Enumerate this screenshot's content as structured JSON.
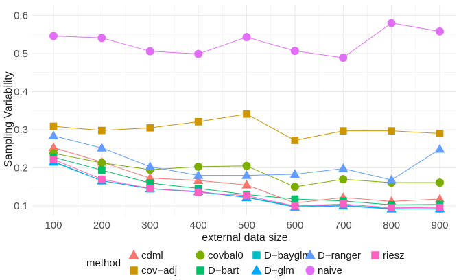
{
  "chart_data": {
    "type": "line",
    "title": "",
    "xlabel": "external data size",
    "ylabel": "Sampling Variability",
    "x": [
      100,
      200,
      300,
      400,
      500,
      600,
      700,
      800,
      900
    ],
    "xlim": [
      100,
      900
    ],
    "ylim": [
      0.08,
      0.62
    ],
    "yticks": [
      0.1,
      0.2,
      0.3,
      0.4,
      0.5,
      0.6
    ],
    "ytick_labels": [
      "0.1",
      "0.2",
      "0.3",
      "0.4",
      "0.5",
      "0.6"
    ],
    "xtick_labels": [
      "100",
      "200",
      "300",
      "400",
      "500",
      "600",
      "700",
      "800",
      "900"
    ],
    "grid": true,
    "legend_title": "method",
    "legend_position": "bottom",
    "series": [
      {
        "name": "cdml",
        "color": "#F8766D",
        "marker": "triangle",
        "values": [
          0.253,
          0.215,
          0.173,
          0.167,
          0.155,
          0.108,
          0.122,
          0.112,
          0.118
        ]
      },
      {
        "name": "cov−adj",
        "color": "#CD9600",
        "marker": "square",
        "values": [
          0.309,
          0.298,
          0.305,
          0.321,
          0.341,
          0.272,
          0.297,
          0.297,
          0.29
        ]
      },
      {
        "name": "covbal0",
        "color": "#7CAE00",
        "marker": "circle",
        "values": [
          0.238,
          0.213,
          0.195,
          0.203,
          0.205,
          0.15,
          0.17,
          0.161,
          0.161
        ]
      },
      {
        "name": "D−bart",
        "color": "#00BE67",
        "marker": "square",
        "values": [
          0.228,
          0.194,
          0.16,
          0.146,
          0.13,
          0.118,
          0.113,
          0.103,
          0.104
        ]
      },
      {
        "name": "D−bayglm",
        "color": "#00BFC4",
        "marker": "square",
        "values": [
          0.217,
          0.166,
          0.145,
          0.136,
          0.123,
          0.099,
          0.102,
          0.093,
          0.092
        ]
      },
      {
        "name": "D−glm",
        "color": "#00A9FF",
        "marker": "triangle",
        "values": [
          0.215,
          0.166,
          0.145,
          0.138,
          0.122,
          0.097,
          0.1,
          0.092,
          0.093
        ]
      },
      {
        "name": "D−ranger",
        "color": "#619CFF",
        "marker": "triangle",
        "values": [
          0.284,
          0.252,
          0.203,
          0.18,
          0.18,
          0.183,
          0.198,
          0.168,
          0.249
        ]
      },
      {
        "name": "naive",
        "color": "#E36EF6",
        "marker": "circle",
        "values": [
          0.546,
          0.541,
          0.506,
          0.499,
          0.543,
          0.507,
          0.489,
          0.58,
          0.558
        ]
      },
      {
        "name": "riesz",
        "color": "#FF61C3",
        "marker": "square",
        "values": [
          0.222,
          0.17,
          0.146,
          0.136,
          0.127,
          0.1,
          0.105,
          0.095,
          0.096
        ]
      }
    ]
  }
}
